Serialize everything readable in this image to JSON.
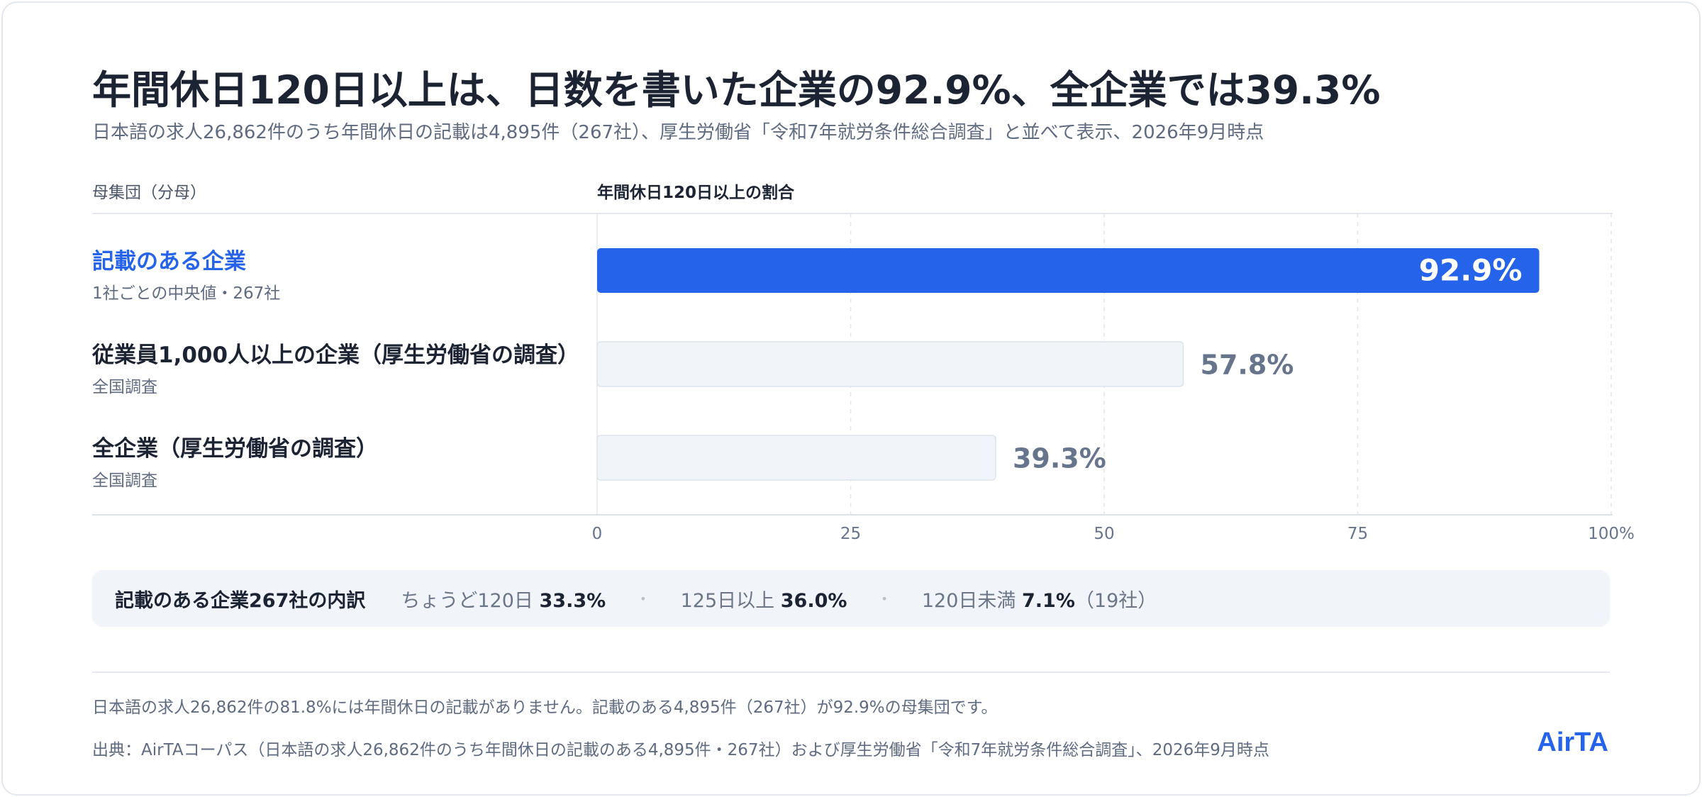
{
  "title": "年間休日120日以上は、日数を書いた企業の92.9%、全企業では39.3%",
  "subtitle": "日本語の求人26,862件のうち年間休日の記載は4,895件（267社）、厚生労働省「令和7年就労条件総合調査」と並べて表示、2026年9月時点",
  "column_headers": {
    "left": "母集団（分母）",
    "right": "年間休日120日以上の割合"
  },
  "rows": [
    {
      "name": "記載のある企業",
      "sub": "1社ごとの中央値・267社"
    },
    {
      "name": "従業員1,000人以上の企業（厚生労働省の調査）",
      "sub": "全国調査"
    },
    {
      "name": "全企業（厚生労働省の調査）",
      "sub": "全国調査"
    }
  ],
  "chart_data": {
    "type": "bar",
    "orientation": "horizontal",
    "categories": [
      "記載のある企業",
      "従業員1,000人以上の企業（厚生労働省の調査）",
      "全企業（厚生労働省の調査）"
    ],
    "values": [
      92.9,
      57.8,
      39.3
    ],
    "value_labels": [
      "92.9%",
      "57.8%",
      "39.3%"
    ],
    "xlim": [
      0,
      100
    ],
    "x_ticks": [
      0,
      25,
      50,
      75,
      100
    ],
    "x_tick_labels": [
      "0",
      "25",
      "50",
      "75",
      "100%"
    ],
    "grid": true,
    "highlight_index": 0,
    "colors": {
      "highlight": "#2563eb",
      "muted_fill": "#f1f4f8",
      "muted_stroke": "#dde3ec",
      "muted_label": "#66758c",
      "grid": "#e3e6eb",
      "tick_label": "#66758c"
    }
  },
  "summary": {
    "lead": "記載のある企業267社の内訳",
    "items": [
      {
        "label": "ちょうど120日",
        "value": "33.3%",
        "extra": ""
      },
      {
        "label": "125日以上",
        "value": "36.0%",
        "extra": ""
      },
      {
        "label": "120日未満",
        "value": "7.1%",
        "extra": "（19社）"
      }
    ],
    "separator": "•"
  },
  "footer": {
    "note": "日本語の求人26,862件の81.8%には年間休日の記載がありません。記載のある4,895件（267社）が92.9%の母集団です。",
    "source": "出典：AirTAコーパス（日本語の求人26,862件のうち年間休日の記載のある4,895件・267社）および厚生労働省「令和7年就労条件総合調査」、2026年9月時点",
    "brand": "AirTA"
  }
}
